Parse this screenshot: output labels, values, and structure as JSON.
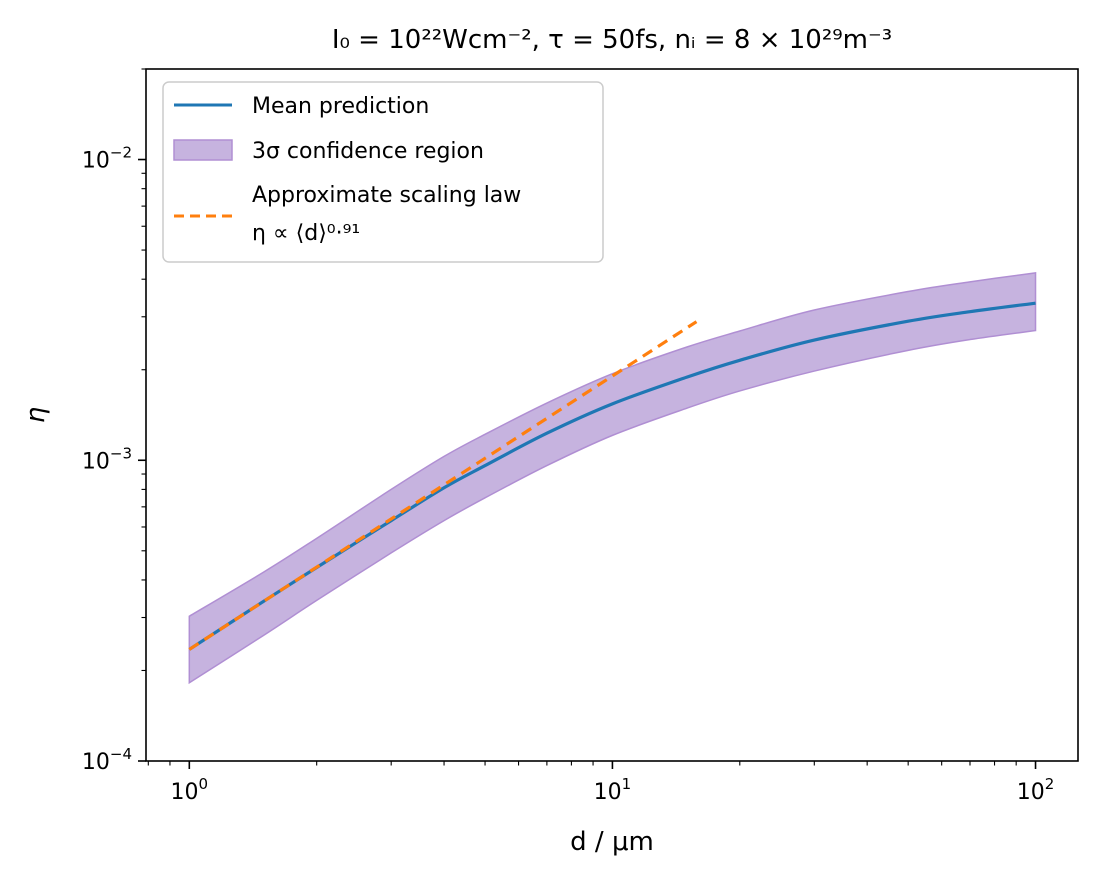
{
  "chart_data": {
    "type": "line",
    "title": "I₀ = 10²²Wcm⁻², τ = 50fs, nᵢ = 8 × 10²⁹m⁻³",
    "xlabel": "d / μm",
    "ylabel": "η",
    "xscale": "log",
    "yscale": "log",
    "xlim": [
      0.79,
      126
    ],
    "ylim": [
      0.0001,
      0.02
    ],
    "x_ticks": [
      {
        "value": 1,
        "label_base": "10",
        "label_exp": "0"
      },
      {
        "value": 10,
        "label_base": "10",
        "label_exp": "1"
      },
      {
        "value": 100,
        "label_base": "10",
        "label_exp": "2"
      }
    ],
    "y_ticks": [
      {
        "value": 0.0001,
        "label_base": "10",
        "label_exp": "−4"
      },
      {
        "value": 0.001,
        "label_base": "10",
        "label_exp": "−3"
      },
      {
        "value": 0.01,
        "label_base": "10",
        "label_exp": "−2"
      }
    ],
    "legend_position": "top-left",
    "series": [
      {
        "name": "Mean prediction",
        "kind": "line",
        "color": "#1f77b4",
        "x": [
          1.0,
          1.5,
          2.0,
          3.0,
          4.0,
          5.0,
          7.0,
          10.0,
          15.0,
          20.0,
          30.0,
          50.0,
          70.0,
          100.0
        ],
        "y": [
          0.000235,
          0.00034,
          0.00044,
          0.00063,
          0.00081,
          0.00096,
          0.00123,
          0.00154,
          0.00189,
          0.00215,
          0.00251,
          0.0029,
          0.00312,
          0.00333
        ]
      },
      {
        "name": "3σ confidence region",
        "kind": "band",
        "color": "#c6b3df",
        "edge_color": "#b08fd3",
        "x": [
          1.0,
          1.5,
          2.0,
          3.0,
          4.0,
          5.0,
          7.0,
          10.0,
          15.0,
          20.0,
          30.0,
          50.0,
          70.0,
          100.0
        ],
        "lower": [
          0.000182,
          0.000262,
          0.000342,
          0.000492,
          0.00063,
          0.00075,
          0.00096,
          0.00121,
          0.00149,
          0.0017,
          0.00198,
          0.00232,
          0.00252,
          0.0027
        ],
        "upper": [
          0.000303,
          0.000425,
          0.00055,
          0.0008,
          0.00103,
          0.00122,
          0.00155,
          0.00194,
          0.00238,
          0.00269,
          0.00316,
          0.00364,
          0.00392,
          0.0042
        ]
      },
      {
        "name": "Approximate scaling law",
        "name_line2": "η ∝ ⟨d⟩⁰·⁹¹",
        "kind": "dashed-line",
        "color": "#ff7f0e",
        "x": [
          1.0,
          15.8
        ],
        "y": [
          0.000235,
          0.00289
        ]
      }
    ]
  }
}
